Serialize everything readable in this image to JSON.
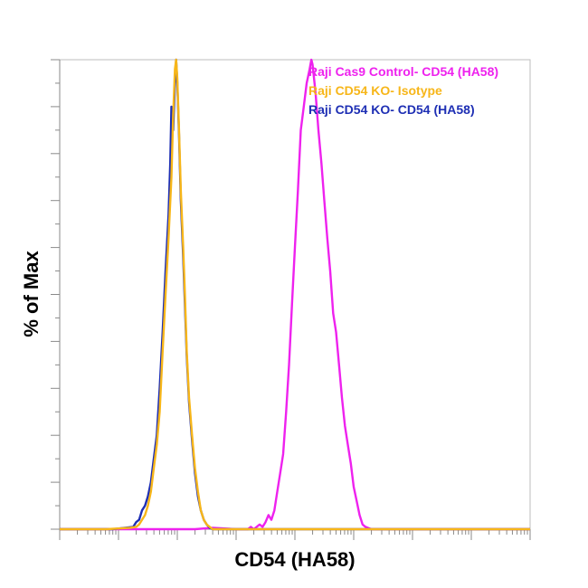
{
  "chart_data": {
    "type": "line",
    "xlabel": "CD54 (HA58)",
    "ylabel": "% of Max",
    "x_scale": "log",
    "xlim": [
      0,
      8
    ],
    "ylim": [
      0,
      100
    ],
    "legend_position": "top-right",
    "series": [
      {
        "name": "Raji Cas9 Control- CD54 (HA58)",
        "color": "#ee22ee",
        "points": [
          [
            0,
            0
          ],
          [
            1.7,
            0
          ],
          [
            2.3,
            0
          ],
          [
            2.6,
            0.3
          ],
          [
            3.0,
            0
          ],
          [
            3.2,
            0
          ],
          [
            3.25,
            0.5
          ],
          [
            3.3,
            0
          ],
          [
            3.4,
            1
          ],
          [
            3.45,
            0.5
          ],
          [
            3.5,
            1.5
          ],
          [
            3.55,
            3
          ],
          [
            3.6,
            2
          ],
          [
            3.65,
            4
          ],
          [
            3.7,
            8
          ],
          [
            3.75,
            12
          ],
          [
            3.8,
            16
          ],
          [
            3.85,
            25
          ],
          [
            3.9,
            35
          ],
          [
            3.95,
            48
          ],
          [
            4.0,
            60
          ],
          [
            4.05,
            72
          ],
          [
            4.1,
            85
          ],
          [
            4.15,
            90
          ],
          [
            4.2,
            95
          ],
          [
            4.25,
            98
          ],
          [
            4.28,
            100
          ],
          [
            4.3,
            99
          ],
          [
            4.35,
            93
          ],
          [
            4.4,
            85
          ],
          [
            4.45,
            78
          ],
          [
            4.5,
            70
          ],
          [
            4.55,
            62
          ],
          [
            4.6,
            55
          ],
          [
            4.65,
            46
          ],
          [
            4.7,
            42
          ],
          [
            4.75,
            35
          ],
          [
            4.8,
            28
          ],
          [
            4.85,
            22
          ],
          [
            4.9,
            18
          ],
          [
            4.95,
            14
          ],
          [
            5.0,
            9
          ],
          [
            5.05,
            6
          ],
          [
            5.1,
            3
          ],
          [
            5.15,
            1
          ],
          [
            5.2,
            0.5
          ],
          [
            5.3,
            0
          ],
          [
            5.6,
            0
          ],
          [
            8.0,
            0
          ]
        ]
      },
      {
        "name": "Raji CD54 KO- Isotype",
        "color": "#f7b619",
        "points": [
          [
            0,
            0
          ],
          [
            0.8,
            0
          ],
          [
            1.2,
            0.3
          ],
          [
            1.3,
            0.5
          ],
          [
            1.35,
            1
          ],
          [
            1.4,
            2
          ],
          [
            1.45,
            3
          ],
          [
            1.5,
            5
          ],
          [
            1.55,
            8
          ],
          [
            1.6,
            13
          ],
          [
            1.65,
            18
          ],
          [
            1.7,
            25
          ],
          [
            1.75,
            38
          ],
          [
            1.8,
            50
          ],
          [
            1.85,
            62
          ],
          [
            1.9,
            75
          ],
          [
            1.93,
            88
          ],
          [
            1.96,
            98
          ],
          [
            1.98,
            100
          ],
          [
            2.0,
            96
          ],
          [
            2.03,
            85
          ],
          [
            2.06,
            72
          ],
          [
            2.1,
            60
          ],
          [
            2.13,
            50
          ],
          [
            2.16,
            38
          ],
          [
            2.2,
            28
          ],
          [
            2.25,
            20
          ],
          [
            2.3,
            13
          ],
          [
            2.35,
            8
          ],
          [
            2.4,
            4
          ],
          [
            2.45,
            2
          ],
          [
            2.5,
            1
          ],
          [
            2.55,
            0.5
          ],
          [
            2.6,
            0
          ],
          [
            4.0,
            0
          ],
          [
            8.0,
            0
          ]
        ]
      },
      {
        "name": "Raji CD54 KO- CD54 (HA58)",
        "color": "#1e2fb4",
        "points": [
          [
            0,
            0
          ],
          [
            0.9,
            0
          ],
          [
            1.25,
            0.5
          ],
          [
            1.3,
            1.5
          ],
          [
            1.35,
            2
          ],
          [
            1.4,
            4
          ],
          [
            1.45,
            5
          ],
          [
            1.5,
            7
          ],
          [
            1.55,
            10
          ],
          [
            1.6,
            15
          ],
          [
            1.65,
            20
          ],
          [
            1.7,
            30
          ],
          [
            1.75,
            42
          ],
          [
            1.8,
            55
          ],
          [
            1.85,
            67
          ],
          [
            1.88,
            78
          ],
          [
            1.9,
            90
          ],
          [
            1.93,
            85
          ],
          [
            1.96,
            95
          ],
          [
            1.98,
            100
          ],
          [
            2.0,
            95
          ],
          [
            2.03,
            84
          ],
          [
            2.06,
            70
          ],
          [
            2.1,
            58
          ],
          [
            2.13,
            48
          ],
          [
            2.16,
            37
          ],
          [
            2.2,
            27
          ],
          [
            2.25,
            19
          ],
          [
            2.3,
            12
          ],
          [
            2.35,
            7
          ],
          [
            2.4,
            4
          ],
          [
            2.45,
            2
          ],
          [
            2.5,
            1
          ],
          [
            2.55,
            0.3
          ],
          [
            2.6,
            0
          ],
          [
            8.0,
            0
          ]
        ]
      }
    ]
  }
}
